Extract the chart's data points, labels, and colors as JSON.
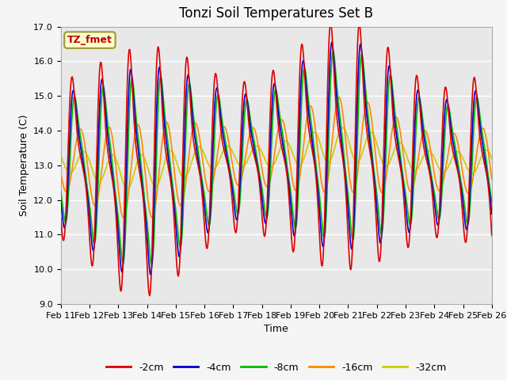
{
  "title": "Tonzi Soil Temperatures Set B",
  "xlabel": "Time",
  "ylabel": "Soil Temperature (C)",
  "ylim": [
    9.0,
    17.0
  ],
  "yticks": [
    9.0,
    10.0,
    11.0,
    12.0,
    13.0,
    14.0,
    15.0,
    16.0,
    17.0
  ],
  "xtick_labels": [
    "Feb 11",
    "Feb 12",
    "Feb 13",
    "Feb 14",
    "Feb 15",
    "Feb 16",
    "Feb 17",
    "Feb 18",
    "Feb 19",
    "Feb 20",
    "Feb 21",
    "Feb 22",
    "Feb 23",
    "Feb 24",
    "Feb 25",
    "Feb 26"
  ],
  "colors": {
    "-2cm": "#dd0000",
    "-4cm": "#0000cc",
    "-8cm": "#00bb00",
    "-16cm": "#ff8800",
    "-32cm": "#cccc00"
  },
  "legend_labels": [
    "-2cm",
    "-4cm",
    "-8cm",
    "-16cm",
    "-32cm"
  ],
  "annotation_text": "TZ_fmet",
  "annotation_bg": "#ffffcc",
  "annotation_border": "#999933",
  "bg_color": "#e8e8e8",
  "grid_color": "#ffffff",
  "title_fontsize": 12,
  "label_fontsize": 9,
  "tick_fontsize": 8,
  "linewidth": 1.2
}
